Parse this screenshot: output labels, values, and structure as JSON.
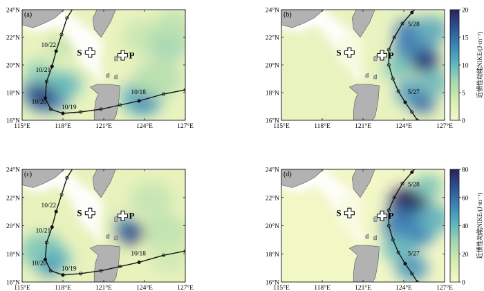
{
  "figure": {
    "colorbar_title": "近惯性动能NIKE/(J·m⁻³)",
    "xtick_labels": [
      "115°E",
      "118°E",
      "121°E",
      "124°E",
      "127°E"
    ],
    "ytick_labels": [
      "16°N",
      "18°N",
      "20°N",
      "22°N",
      "24°N"
    ],
    "site_S": "S",
    "site_P": "P"
  },
  "panels": [
    {
      "label": "(a)",
      "track": "typhoon_a",
      "colorbar": null,
      "track_labels": [
        {
          "text": "10/22",
          "lon": 116.4,
          "lat": 21.3
        },
        {
          "text": "10/21",
          "lon": 116.0,
          "lat": 19.5
        },
        {
          "text": "10/20",
          "lon": 115.7,
          "lat": 17.2
        },
        {
          "text": "10/19",
          "lon": 117.9,
          "lat": 16.8
        },
        {
          "text": "10/18",
          "lon": 123.0,
          "lat": 17.9
        }
      ]
    },
    {
      "label": "(b)",
      "track": "typhoon_b",
      "colorbar": {
        "min": 0,
        "max": 20,
        "ticks": [
          0,
          5,
          10,
          15,
          20
        ]
      },
      "track_labels": [
        {
          "text": "5/28",
          "lon": 124.3,
          "lat": 22.8
        },
        {
          "text": "5/27",
          "lon": 124.3,
          "lat": 17.9
        }
      ]
    },
    {
      "label": "(c)",
      "track": "typhoon_a",
      "colorbar": null,
      "track_labels": [
        {
          "text": "10/22",
          "lon": 116.4,
          "lat": 21.3
        },
        {
          "text": "10/21",
          "lon": 116.0,
          "lat": 19.5
        },
        {
          "text": "10/20",
          "lon": 115.7,
          "lat": 17.2
        },
        {
          "text": "10/19",
          "lon": 117.9,
          "lat": 16.8
        },
        {
          "text": "10/18",
          "lon": 123.0,
          "lat": 17.9
        }
      ]
    },
    {
      "label": "(d)",
      "track": "typhoon_b",
      "colorbar": {
        "min": 0,
        "max": 80,
        "ticks": [
          0,
          20,
          40,
          60,
          80
        ]
      },
      "track_labels": [
        {
          "text": "5/28",
          "lon": 124.3,
          "lat": 22.8
        },
        {
          "text": "5/27",
          "lon": 124.3,
          "lat": 17.9
        }
      ]
    }
  ],
  "tracks": {
    "typhoon_a": [
      [
        119.0,
        24.5
      ],
      [
        118.3,
        23.4
      ],
      [
        117.9,
        22.2
      ],
      [
        117.5,
        21.0
      ],
      [
        117.2,
        19.9
      ],
      [
        116.8,
        18.8
      ],
      [
        116.7,
        17.6
      ],
      [
        117.1,
        16.8
      ],
      [
        118.0,
        16.5
      ],
      [
        119.3,
        16.6
      ],
      [
        120.8,
        16.8
      ],
      [
        122.2,
        17.1
      ],
      [
        123.6,
        17.4
      ],
      [
        125.4,
        17.9
      ],
      [
        127.0,
        18.2
      ]
    ],
    "typhoon_b": [
      [
        125.3,
        24.5
      ],
      [
        124.6,
        23.8
      ],
      [
        123.9,
        23.0
      ],
      [
        123.3,
        22.0
      ],
      [
        122.9,
        21.1
      ],
      [
        122.9,
        20.0
      ],
      [
        123.2,
        19.0
      ],
      [
        123.6,
        18.1
      ],
      [
        124.1,
        17.3
      ],
      [
        124.6,
        16.6
      ],
      [
        125.0,
        16.0
      ]
    ]
  },
  "sites": {
    "S": [
      120.0,
      20.9
    ],
    "P": [
      122.4,
      20.7
    ]
  },
  "colors": {
    "land": "#b2b2b2",
    "ocean_low": "#f1f5c2",
    "ocean_mid": "#8bc9b4",
    "ocean_high": "#2c3f7d",
    "colormap": [
      "#f6f9c9",
      "#d6ecaf",
      "#a2d6b2",
      "#5ab4be",
      "#3a84b5",
      "#2d4f93",
      "#27235a"
    ]
  }
}
